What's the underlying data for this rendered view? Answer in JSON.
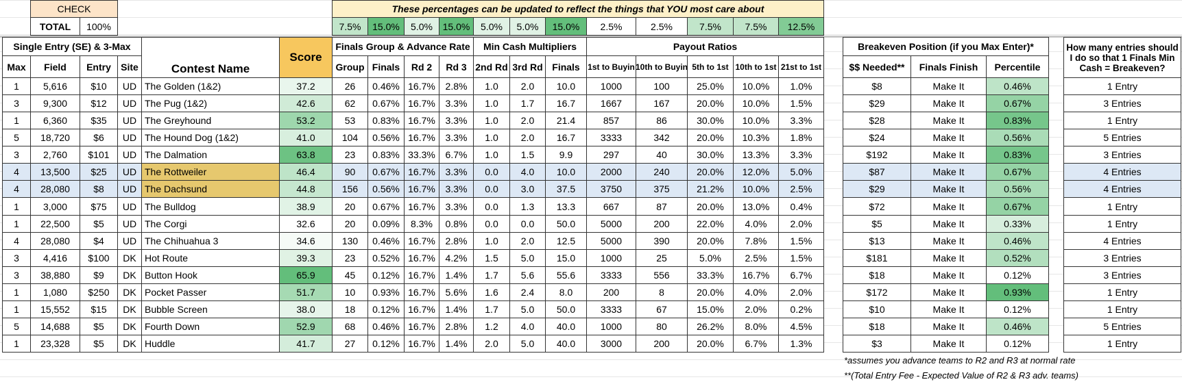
{
  "check": {
    "label": "CHECK",
    "total_label": "TOTAL",
    "total_value": "100%"
  },
  "weights_note": "These percentages can be updated to reflect the things that YOU most care about",
  "weights": [
    "7.5%",
    "15.0%",
    "5.0%",
    "15.0%",
    "5.0%",
    "5.0%",
    "15.0%",
    "2.5%",
    "2.5%",
    "7.5%",
    "7.5%",
    "12.5%"
  ],
  "group_headers": [
    "Single Entry (SE) & 3-Max",
    "Score",
    "Finals Group & Advance Rate",
    "Min Cash Multipliers",
    "Payout Ratios",
    "Breakeven Position (if you Max Enter)*",
    "How many entries should I do so that 1 Finals Min Cash = Breakeven?"
  ],
  "columns": [
    "Max",
    "Field",
    "Entry",
    "Site",
    "Contest Name",
    "Group",
    "Finals",
    "Rd 2",
    "Rd 3",
    "2nd Rd",
    "3rd Rd",
    "Finals",
    "1st to Buyin",
    "10th to Buyin",
    "5th to 1st",
    "10th to 1st",
    "21st to 1st",
    "$$ Needed**",
    "Finals Finish",
    "Percentile"
  ],
  "table": {
    "rows": [
      {
        "cells": [
          "1",
          "5,616",
          "$10",
          "UD",
          "The Golden (1&2)",
          "37.2",
          "26",
          "0.46%",
          "16.7%",
          "2.8%",
          "1.0",
          "2.0",
          "10.0",
          "1000",
          "100",
          "25.0%",
          "10.0%",
          "1.0%",
          "$8",
          "Make It",
          "0.46%",
          "1 Entry"
        ]
      },
      {
        "cells": [
          "3",
          "9,300",
          "$12",
          "UD",
          "The Pug (1&2)",
          "42.6",
          "62",
          "0.67%",
          "16.7%",
          "3.3%",
          "1.0",
          "1.7",
          "16.7",
          "1667",
          "167",
          "20.0%",
          "10.0%",
          "1.5%",
          "$29",
          "Make It",
          "0.67%",
          "3 Entries"
        ]
      },
      {
        "cells": [
          "1",
          "6,360",
          "$35",
          "UD",
          "The Greyhound",
          "53.2",
          "53",
          "0.83%",
          "16.7%",
          "3.3%",
          "1.0",
          "2.0",
          "21.4",
          "857",
          "86",
          "30.0%",
          "10.0%",
          "3.3%",
          "$28",
          "Make It",
          "0.83%",
          "1 Entry"
        ]
      },
      {
        "cells": [
          "5",
          "18,720",
          "$6",
          "UD",
          "The Hound Dog (1&2)",
          "41.0",
          "104",
          "0.56%",
          "16.7%",
          "3.3%",
          "1.0",
          "2.0",
          "16.7",
          "3333",
          "342",
          "20.0%",
          "10.3%",
          "1.8%",
          "$24",
          "Make It",
          "0.56%",
          "5 Entries"
        ]
      },
      {
        "cells": [
          "3",
          "2,760",
          "$101",
          "UD",
          "The Dalmation",
          "63.8",
          "23",
          "0.83%",
          "33.3%",
          "6.7%",
          "1.0",
          "1.5",
          "9.9",
          "297",
          "40",
          "30.0%",
          "13.3%",
          "3.3%",
          "$192",
          "Make It",
          "0.83%",
          "3 Entries"
        ]
      },
      {
        "cells": [
          "4",
          "13,500",
          "$25",
          "UD",
          "The Rottweiler",
          "46.4",
          "90",
          "0.67%",
          "16.7%",
          "3.3%",
          "0.0",
          "4.0",
          "10.0",
          "2000",
          "240",
          "20.0%",
          "12.0%",
          "5.0%",
          "$87",
          "Make It",
          "0.67%",
          "4 Entries"
        ],
        "highlighted": true
      },
      {
        "cells": [
          "4",
          "28,080",
          "$8",
          "UD",
          "The Dachsund",
          "44.8",
          "156",
          "0.56%",
          "16.7%",
          "3.3%",
          "0.0",
          "3.0",
          "37.5",
          "3750",
          "375",
          "21.2%",
          "10.0%",
          "2.5%",
          "$29",
          "Make It",
          "0.56%",
          "4 Entries"
        ],
        "highlighted": true
      },
      {
        "cells": [
          "1",
          "3,000",
          "$75",
          "UD",
          "The Bulldog",
          "38.9",
          "20",
          "0.67%",
          "16.7%",
          "3.3%",
          "0.0",
          "1.3",
          "13.3",
          "667",
          "87",
          "20.0%",
          "13.0%",
          "0.4%",
          "$72",
          "Make It",
          "0.67%",
          "1 Entry"
        ]
      },
      {
        "cells": [
          "1",
          "22,500",
          "$5",
          "UD",
          "The Corgi",
          "32.6",
          "20",
          "0.09%",
          "8.3%",
          "0.8%",
          "0.0",
          "0.0",
          "50.0",
          "5000",
          "200",
          "22.0%",
          "4.0%",
          "2.0%",
          "$5",
          "Make It",
          "0.33%",
          "1 Entry"
        ]
      },
      {
        "cells": [
          "4",
          "28,080",
          "$4",
          "UD",
          "The Chihuahua 3",
          "34.6",
          "130",
          "0.46%",
          "16.7%",
          "2.8%",
          "1.0",
          "2.0",
          "12.5",
          "5000",
          "390",
          "20.0%",
          "7.8%",
          "1.5%",
          "$13",
          "Make It",
          "0.46%",
          "4 Entries"
        ]
      },
      {
        "cells": [
          "3",
          "4,416",
          "$100",
          "DK",
          "Hot Route",
          "39.3",
          "23",
          "0.52%",
          "16.7%",
          "4.2%",
          "1.5",
          "5.0",
          "15.0",
          "1000",
          "25",
          "5.0%",
          "2.5%",
          "1.5%",
          "$181",
          "Make It",
          "0.52%",
          "3 Entries"
        ]
      },
      {
        "cells": [
          "3",
          "38,880",
          "$9",
          "DK",
          "Button Hook",
          "65.9",
          "45",
          "0.12%",
          "16.7%",
          "1.4%",
          "1.7",
          "5.6",
          "55.6",
          "3333",
          "556",
          "33.3%",
          "16.7%",
          "6.7%",
          "$18",
          "Make It",
          "0.12%",
          "3 Entries"
        ]
      },
      {
        "cells": [
          "1",
          "1,080",
          "$250",
          "DK",
          "Pocket Passer",
          "51.7",
          "10",
          "0.93%",
          "16.7%",
          "5.6%",
          "1.6",
          "2.4",
          "8.0",
          "200",
          "8",
          "20.0%",
          "4.0%",
          "2.0%",
          "$172",
          "Make It",
          "0.93%",
          "1 Entry"
        ]
      },
      {
        "cells": [
          "1",
          "15,552",
          "$15",
          "DK",
          "Bubble Screen",
          "38.0",
          "18",
          "0.12%",
          "16.7%",
          "1.4%",
          "1.7",
          "5.0",
          "50.0",
          "3333",
          "67",
          "15.0%",
          "2.0%",
          "0.2%",
          "$10",
          "Make It",
          "0.12%",
          "1 Entry"
        ]
      },
      {
        "cells": [
          "5",
          "14,688",
          "$5",
          "DK",
          "Fourth Down",
          "52.9",
          "68",
          "0.46%",
          "16.7%",
          "2.8%",
          "1.2",
          "4.0",
          "40.0",
          "1000",
          "80",
          "26.2%",
          "8.0%",
          "4.5%",
          "$18",
          "Make It",
          "0.46%",
          "5 Entries"
        ]
      },
      {
        "cells": [
          "1",
          "23,328",
          "$5",
          "DK",
          "Huddle",
          "41.7",
          "27",
          "0.12%",
          "16.7%",
          "1.4%",
          "2.0",
          "5.0",
          "40.0",
          "3000",
          "200",
          "20.0%",
          "6.7%",
          "1.3%",
          "$3",
          "Make It",
          "0.12%",
          "1 Entry"
        ]
      }
    ]
  },
  "footnotes": [
    "*assumes you advance teams to R2 and R3 at normal rate",
    "**(Total Entry Fee - Expected Value of R2 & R3 adv. teams)"
  ]
}
